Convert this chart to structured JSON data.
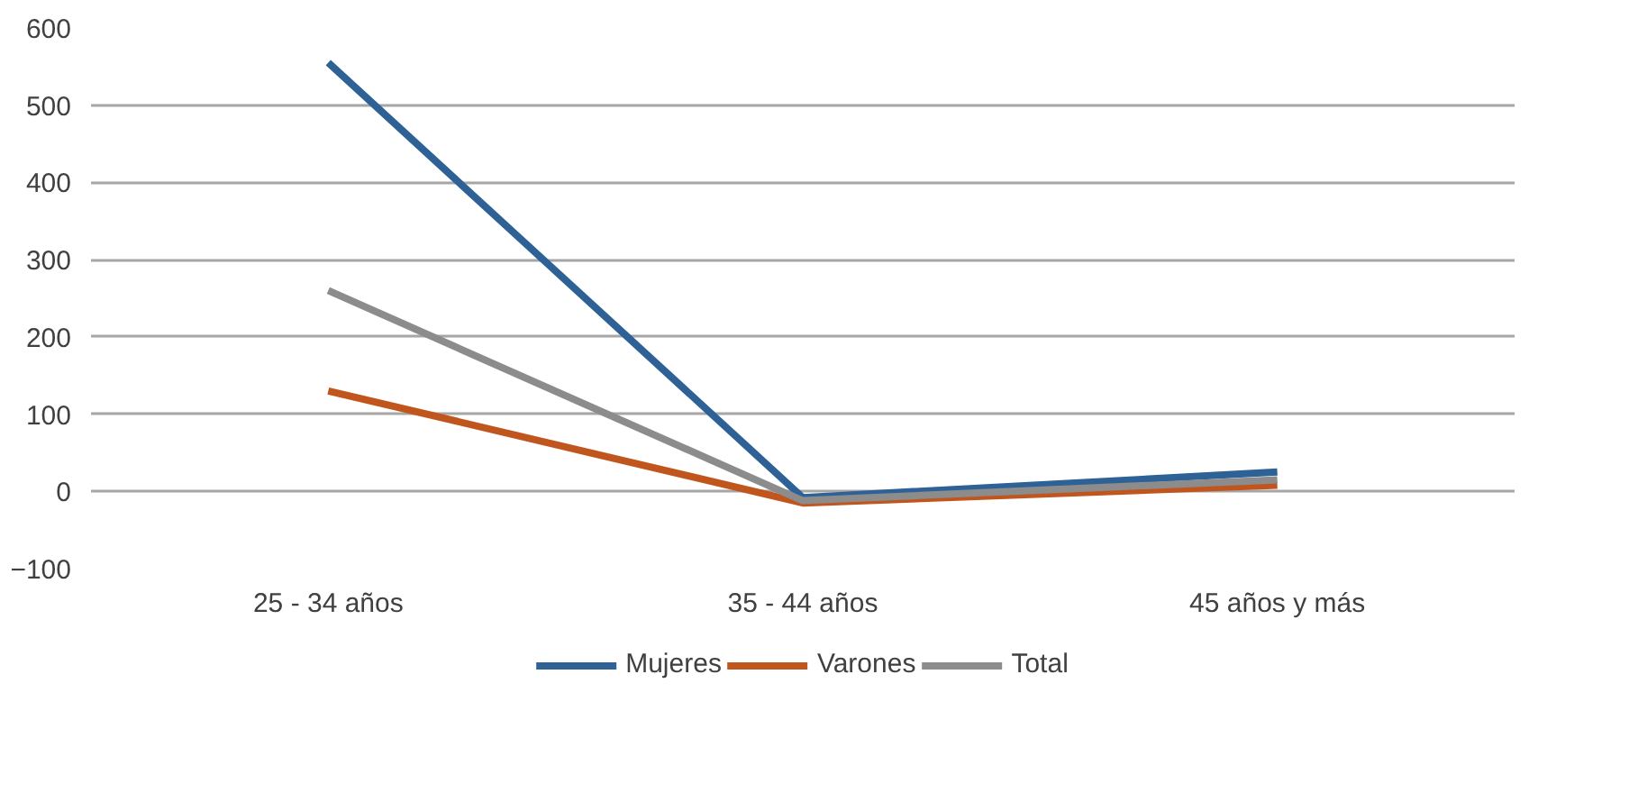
{
  "chart_data": {
    "type": "line",
    "categories": [
      "25 - 34 años",
      "35 - 44 años",
      "45 años y más"
    ],
    "series": [
      {
        "name": "Mujeres",
        "color": "#2e6195",
        "values": [
          555,
          -8,
          25
        ]
      },
      {
        "name": "Varones",
        "color": "#c0561e",
        "values": [
          130,
          -15,
          8
        ]
      },
      {
        "name": "Total",
        "color": "#8c8c8c",
        "values": [
          260,
          -12,
          15
        ]
      }
    ],
    "ylim": [
      -100,
      600
    ],
    "yticks": [
      -100,
      0,
      100,
      200,
      300,
      400,
      500,
      600
    ],
    "grid": "y",
    "legend": "bottom",
    "marker": "none",
    "line_style": "solid"
  }
}
